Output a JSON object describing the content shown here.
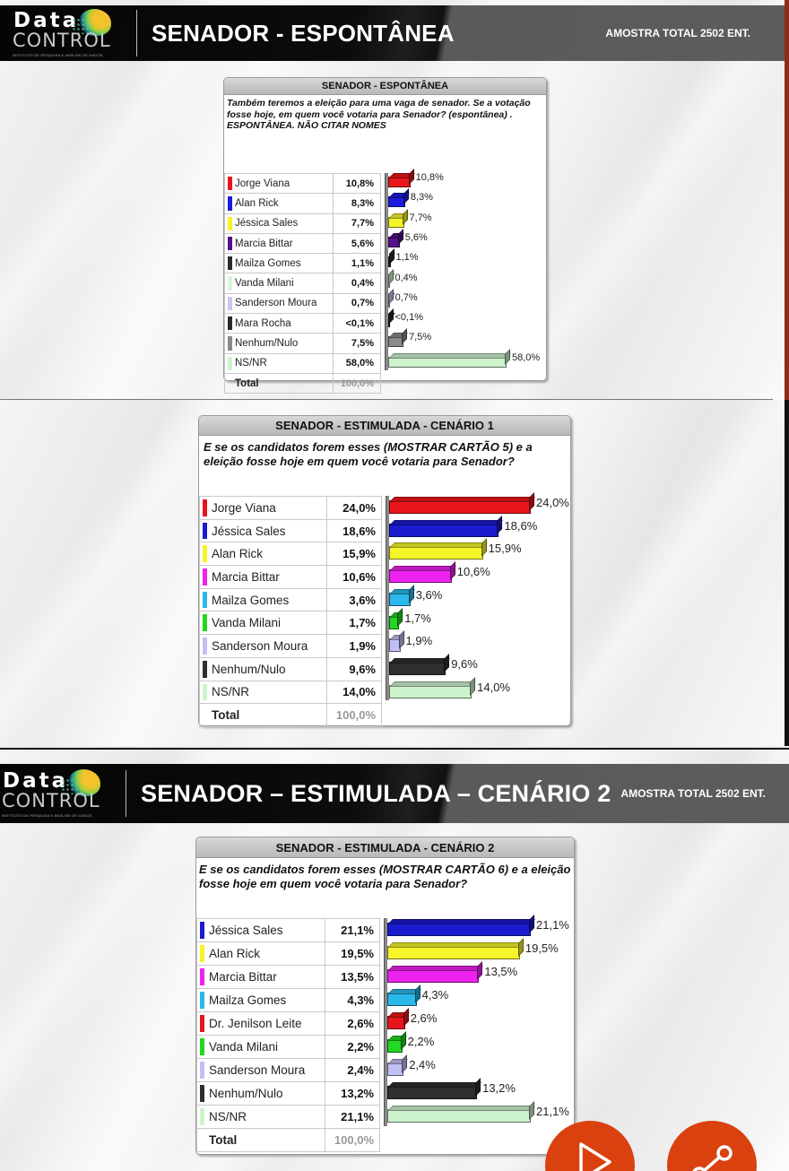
{
  "slides": [
    {
      "header": {
        "logo": {
          "line1": "Data",
          "line2": "CONTROL",
          "tagline": "INSTITUTO DE PESQUISA E ANÁLISE DE DADOS"
        },
        "title": "SENADOR - ESPONTÂNEA",
        "sample": "AMOSTRA TOTAL 2502 ENT."
      },
      "panel": {
        "title": "SENADOR - ESPONTÂNEA",
        "question": "Também teremos a eleição para uma vaga de senador. Se a votação fosse hoje, em quem você votaria para Senador? (espontânea) . ESPONTÂNEA. NÃO CITAR NOMES",
        "rows": [
          {
            "name": "Jorge Viana",
            "value": "10,8%",
            "color": "#e8161c"
          },
          {
            "name": "Alan Rick",
            "value": "8,3%",
            "color": "#1b1be0"
          },
          {
            "name": "Jéssica Sales",
            "value": "7,7%",
            "color": "#f5f52a"
          },
          {
            "name": "Marcia Bittar",
            "value": "5,6%",
            "color": "#55118a"
          },
          {
            "name": "Mailza Gomes",
            "value": "1,1%",
            "color": "#2a2a2a"
          },
          {
            "name": "Vanda Milani",
            "value": "0,4%",
            "color": "#d8f5d8"
          },
          {
            "name": "Sanderson Moura",
            "value": "0,7%",
            "color": "#c8c8f0"
          },
          {
            "name": "Mara Rocha",
            "value": "<0,1%",
            "color": "#2a2a2a"
          },
          {
            "name": "Nenhum/Nulo",
            "value": "7,5%",
            "color": "#8a8a8a"
          },
          {
            "name": "NS/NR",
            "value": "58,0%",
            "color": "#cdf3cd"
          }
        ],
        "total": {
          "name": "Total",
          "value": "100,0%"
        }
      }
    },
    {
      "panel": {
        "title": "SENADOR - ESTIMULADA - CENÁRIO 1",
        "question": "E se os candidatos forem esses (MOSTRAR CARTÃO 5) e a eleição fosse hoje em quem você votaria para Senador?",
        "rows": [
          {
            "name": "Jorge Viana",
            "value": "24,0%",
            "color": "#e8161c"
          },
          {
            "name": "Jéssica Sales",
            "value": "18,6%",
            "color": "#1b1bd0"
          },
          {
            "name": "Alan Rick",
            "value": "15,9%",
            "color": "#f5f52a"
          },
          {
            "name": "Marcia Bittar",
            "value": "10,6%",
            "color": "#ee22ee"
          },
          {
            "name": "Mailza Gomes",
            "value": "3,6%",
            "color": "#2ab8ea"
          },
          {
            "name": "Vanda Milani",
            "value": "1,7%",
            "color": "#22d822"
          },
          {
            "name": "Sanderson Moura",
            "value": "1,9%",
            "color": "#c0c0f4"
          },
          {
            "name": "Nenhum/Nulo",
            "value": "9,6%",
            "color": "#2e2e2e"
          },
          {
            "name": "NS/NR",
            "value": "14,0%",
            "color": "#cdf3cd"
          }
        ],
        "total": {
          "name": "Total",
          "value": "100,0%"
        }
      }
    },
    {
      "header": {
        "logo": {
          "line1": "Data",
          "line2": "CONTROL",
          "tagline": "INSTITUTO DE PESQUISA E ANÁLISE DE DADOS"
        },
        "title": "SENADOR – ESTIMULADA – CENÁRIO 2",
        "sample": "AMOSTRA TOTAL 2502 ENT."
      },
      "panel": {
        "title": "SENADOR - ESTIMULADA - CENÁRIO 2",
        "question": "E se os candidatos forem esses (MOSTRAR CARTÃO 6) e a eleição fosse hoje em quem você votaria para Senador?",
        "rows": [
          {
            "name": "Jéssica Sales",
            "value": "21,1%",
            "color": "#1b1bd0"
          },
          {
            "name": "Alan Rick",
            "value": "19,5%",
            "color": "#f5f52a"
          },
          {
            "name": "Marcia Bittar",
            "value": "13,5%",
            "color": "#ee22ee"
          },
          {
            "name": "Mailza Gomes",
            "value": "4,3%",
            "color": "#2ab8ea"
          },
          {
            "name": "Dr. Jenilson Leite",
            "value": "2,6%",
            "color": "#e8161c"
          },
          {
            "name": "Vanda Milani",
            "value": "2,2%",
            "color": "#22d822"
          },
          {
            "name": "Sanderson Moura",
            "value": "2,4%",
            "color": "#c0c0f4"
          },
          {
            "name": "Nenhum/Nulo",
            "value": "13,2%",
            "color": "#2e2e2e"
          },
          {
            "name": "NS/NR",
            "value": "21,1%",
            "color": "#cdf3cd"
          }
        ],
        "total": {
          "name": "Total",
          "value": "100,0%"
        }
      }
    }
  ],
  "controls": {
    "play_icon": "play-icon",
    "share_icon": "share-icon",
    "accent": "#d9410f"
  },
  "chart_data": [
    {
      "type": "bar",
      "orientation": "horizontal",
      "title": "SENADOR - ESPONTÂNEA",
      "subtitle": "Também teremos a eleição para uma vaga de senador. Se a votação fosse hoje, em quem você votaria para Senador? (espontânea) . ESPONTÂNEA. NÃO CITAR NOMES",
      "categories": [
        "Jorge Viana",
        "Alan Rick",
        "Jéssica Sales",
        "Marcia Bittar",
        "Mailza Gomes",
        "Vanda Milani",
        "Sanderson Moura",
        "Mara Rocha",
        "Nenhum/Nulo",
        "NS/NR"
      ],
      "values": [
        10.8,
        8.3,
        7.7,
        5.6,
        1.1,
        0.4,
        0.7,
        0.05,
        7.5,
        58.0
      ],
      "labels": [
        "10,8%",
        "8,3%",
        "7,7%",
        "5,6%",
        "1,1%",
        "0,4%",
        "0,7%",
        "<0,1%",
        "7,5%",
        "58,0%"
      ],
      "total": "100,0%",
      "xlim": [
        0,
        58.0
      ],
      "sample": "AMOSTRA TOTAL 2502 ENT."
    },
    {
      "type": "bar",
      "orientation": "horizontal",
      "title": "SENADOR - ESTIMULADA - CENÁRIO 1",
      "subtitle": "E se os candidatos forem esses (MOSTRAR CARTÃO 5) e a eleição fosse hoje em quem você votaria para Senador?",
      "categories": [
        "Jorge Viana",
        "Jéssica Sales",
        "Alan Rick",
        "Marcia Bittar",
        "Mailza Gomes",
        "Vanda Milani",
        "Sanderson Moura",
        "Nenhum/Nulo",
        "NS/NR"
      ],
      "values": [
        24.0,
        18.6,
        15.9,
        10.6,
        3.6,
        1.7,
        1.9,
        9.6,
        14.0
      ],
      "labels": [
        "24,0%",
        "18,6%",
        "15,9%",
        "10,6%",
        "3,6%",
        "1,7%",
        "1,9%",
        "9,6%",
        "14,0%"
      ],
      "total": "100,0%",
      "xlim": [
        0,
        24.0
      ]
    },
    {
      "type": "bar",
      "orientation": "horizontal",
      "title": "SENADOR - ESTIMULADA - CENÁRIO 2",
      "subtitle": "E se os candidatos forem esses (MOSTRAR CARTÃO 6) e a eleição fosse hoje em quem você votaria para Senador?",
      "categories": [
        "Jéssica Sales",
        "Alan Rick",
        "Marcia Bittar",
        "Mailza Gomes",
        "Dr. Jenilson Leite",
        "Vanda Milani",
        "Sanderson Moura",
        "Nenhum/Nulo",
        "NS/NR"
      ],
      "values": [
        21.1,
        19.5,
        13.5,
        4.3,
        2.6,
        2.2,
        2.4,
        13.2,
        21.1
      ],
      "labels": [
        "21,1%",
        "19,5%",
        "13,5%",
        "4,3%",
        "2,6%",
        "2,2%",
        "2,4%",
        "13,2%",
        "21,1%"
      ],
      "total": "100,0%",
      "xlim": [
        0,
        21.1
      ],
      "sample": "AMOSTRA TOTAL 2502 ENT."
    }
  ]
}
